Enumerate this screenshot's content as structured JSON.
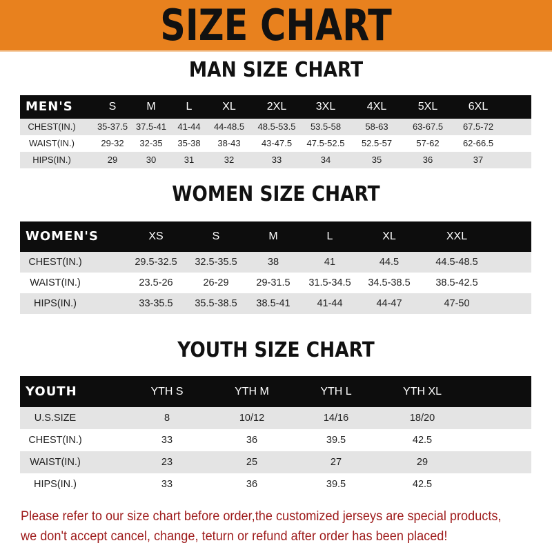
{
  "banner": {
    "title": "SIZE CHART",
    "color": "#E8811E"
  },
  "men": {
    "title": "MAN SIZE CHART",
    "header": [
      "MEN'S",
      "S",
      "M",
      "L",
      "XL",
      "2XL",
      "3XL",
      "4XL",
      "5XL",
      "6XL"
    ],
    "rows": [
      [
        "CHEST(IN.)",
        "35-37.5",
        "37.5-41",
        "41-44",
        "44-48.5",
        "48.5-53.5",
        "53.5-58",
        "58-63",
        "63-67.5",
        "67.5-72"
      ],
      [
        "WAIST(IN.)",
        "29-32",
        "32-35",
        "35-38",
        "38-43",
        "43-47.5",
        "47.5-52.5",
        "52.5-57",
        "57-62",
        "62-66.5"
      ],
      [
        "HIPS(IN.)",
        "29",
        "30",
        "31",
        "32",
        "33",
        "34",
        "35",
        "36",
        "37"
      ]
    ]
  },
  "women": {
    "title": "WOMEN SIZE CHART",
    "header": [
      "WOMEN'S",
      "XS",
      "S",
      "M",
      "L",
      "XL",
      "XXL"
    ],
    "rows": [
      [
        "CHEST(IN.)",
        "29.5-32.5",
        "32.5-35.5",
        "38",
        "41",
        "44.5",
        "44.5-48.5"
      ],
      [
        "WAIST(IN.)",
        "23.5-26",
        "26-29",
        "29-31.5",
        "31.5-34.5",
        "34.5-38.5",
        "38.5-42.5"
      ],
      [
        "HIPS(IN.)",
        "33-35.5",
        "35.5-38.5",
        "38.5-41",
        "41-44",
        "44-47",
        "47-50"
      ]
    ]
  },
  "youth": {
    "title": "YOUTH SIZE CHART",
    "header": [
      "YOUTH",
      "YTH S",
      "YTH M",
      "YTH L",
      "YTH XL"
    ],
    "rows": [
      [
        "U.S.SIZE",
        "8",
        "10/12",
        "14/16",
        "18/20"
      ],
      [
        "CHEST(IN.)",
        "33",
        "36",
        "39.5",
        "42.5"
      ],
      [
        "WAIST(IN.)",
        "23",
        "25",
        "27",
        "29"
      ],
      [
        "HIPS(IN.)",
        "33",
        "36",
        "39.5",
        "42.5"
      ]
    ]
  },
  "note": {
    "line1": "Please refer to our size chart before order,the customized jerseys are special products,",
    "line2": "we don't accept cancel, change, teturn or refund after order has been placed!",
    "color": "#9e1b1b"
  }
}
